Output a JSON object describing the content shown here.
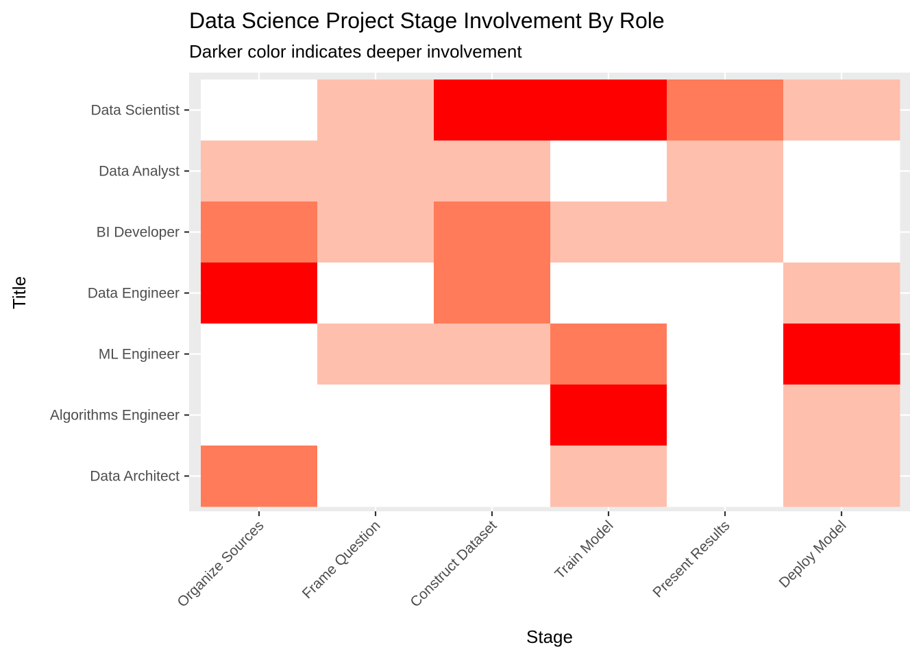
{
  "chart_data": {
    "type": "heatmap",
    "title": "Data Science Project Stage Involvement By Role",
    "subtitle": "Darker color indicates deeper involvement",
    "xlabel": "Stage",
    "ylabel": "Title",
    "x_categories": [
      "Organize Sources",
      "Frame  Question",
      "Construct Dataset",
      "Train Model",
      "Present Results",
      "Deploy Model"
    ],
    "y_categories": [
      "Data Scientist",
      "Data Analyst",
      "BI Developer",
      "Data Engineer",
      "ML Engineer",
      "Algorithms Engineer",
      "Data Architect"
    ],
    "values": [
      [
        0,
        1,
        3,
        3,
        2,
        1
      ],
      [
        1,
        1,
        1,
        0,
        1,
        0
      ],
      [
        2,
        1,
        2,
        1,
        1,
        0
      ],
      [
        3,
        0,
        2,
        0,
        0,
        1
      ],
      [
        0,
        1,
        1,
        2,
        0,
        3
      ],
      [
        0,
        0,
        0,
        3,
        0,
        1
      ],
      [
        2,
        0,
        0,
        1,
        0,
        1
      ]
    ],
    "color_scale": [
      "#ffffff",
      "#ffbfad",
      "#ff7b59",
      "#ff0000"
    ],
    "panel_background": "#ebebeb",
    "gridline_color": "#ffffff",
    "legend": "none"
  }
}
